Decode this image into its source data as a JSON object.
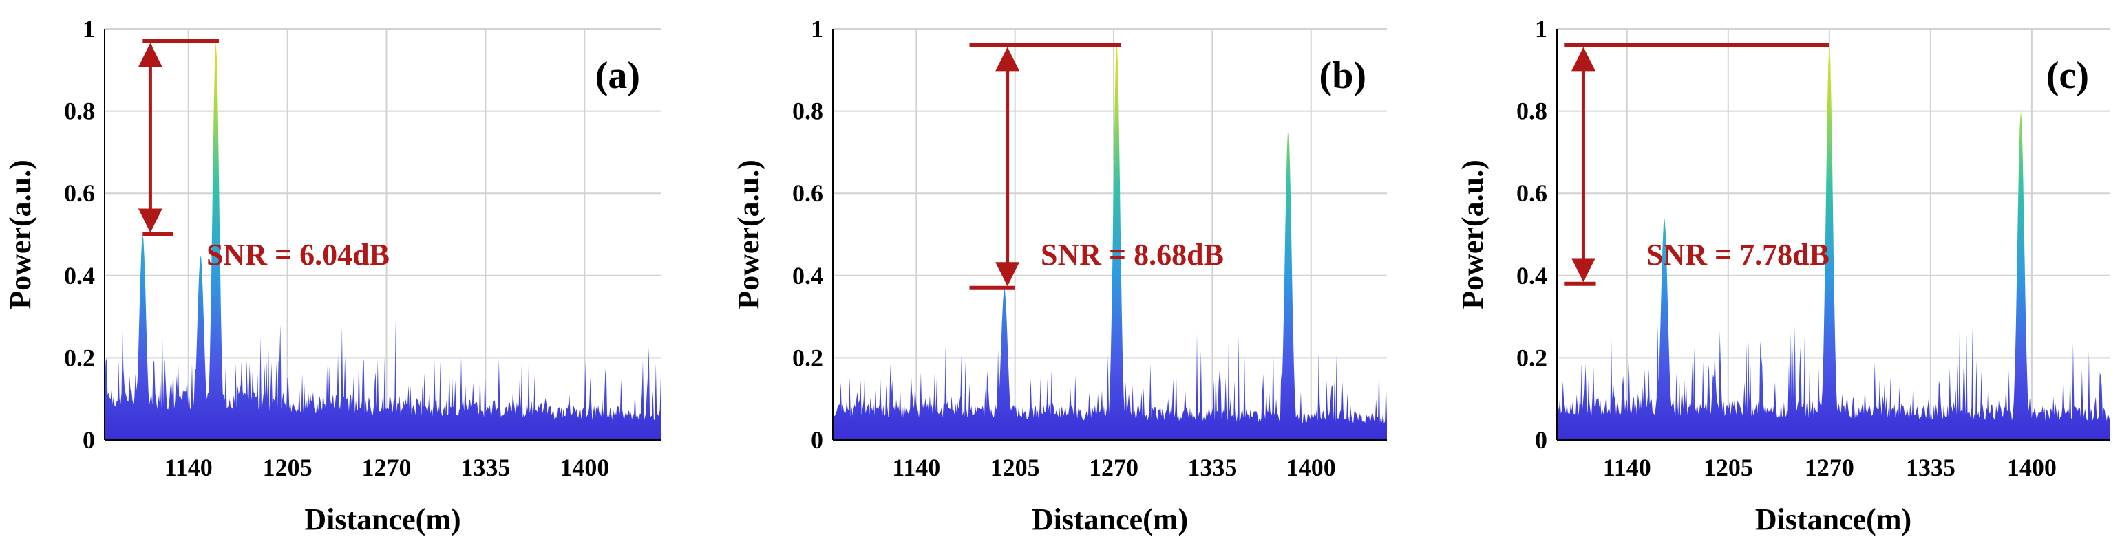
{
  "colors": {
    "annotation": "#b01818",
    "trace_low": "#3a2fd6",
    "trace_mid": "#2f9be0",
    "trace_high": "#f2e21a",
    "grid": "#d2d2d2"
  },
  "chart_data": [
    {
      "type": "area",
      "panel_label": "(a)",
      "xlabel": "Distance(m)",
      "ylabel": "Power(a.u.)",
      "xlim": [
        1085,
        1450
      ],
      "ylim": [
        0,
        1
      ],
      "xticks": [
        "1140",
        "1205",
        "1270",
        "1335",
        "1400"
      ],
      "yticks": [
        "0",
        "0.2",
        "0.4",
        "0.6",
        "0.8",
        "1"
      ],
      "grid": true,
      "floor_start": 0.14,
      "floor_end": 0.08,
      "noise_max": 0.2,
      "noise_seed": 7,
      "peaks": [
        {
          "x": 1158,
          "y": 0.97
        },
        {
          "x": 1110,
          "y": 0.5
        },
        {
          "x": 1148,
          "y": 0.45
        }
      ],
      "snr": {
        "text": "SNR = 6.04dB",
        "top": 0.97,
        "bottom": 0.5,
        "arrow_x": 1115,
        "line_x0": 1110,
        "line_x1": 1160,
        "bottom_x1": 1130
      }
    },
    {
      "type": "area",
      "panel_label": "(b)",
      "xlabel": "Distance(m)",
      "ylabel": "Power(a.u.)",
      "xlim": [
        1085,
        1450
      ],
      "ylim": [
        0,
        1
      ],
      "xticks": [
        "1140",
        "1205",
        "1270",
        "1335",
        "1400"
      ],
      "yticks": [
        "0",
        "0.2",
        "0.4",
        "0.6",
        "0.8",
        "1"
      ],
      "grid": true,
      "floor_start": 0.1,
      "floor_end": 0.07,
      "noise_max": 0.17,
      "noise_seed": 11,
      "peaks": [
        {
          "x": 1272,
          "y": 0.97
        },
        {
          "x": 1385,
          "y": 0.76
        },
        {
          "x": 1198,
          "y": 0.37
        }
      ],
      "snr": {
        "text": "SNR = 8.68dB",
        "top": 0.96,
        "bottom": 0.37,
        "arrow_x": 1200,
        "line_x0": 1175,
        "line_x1": 1275,
        "bottom_x1": 1205
      }
    },
    {
      "type": "area",
      "panel_label": "(c)",
      "xlabel": "Distance(m)",
      "ylabel": "Power(a.u.)",
      "xlim": [
        1095,
        1450
      ],
      "ylim": [
        0,
        1
      ],
      "xticks": [
        "1140",
        "1205",
        "1270",
        "1335",
        "1400"
      ],
      "yticks": [
        "0",
        "0.2",
        "0.4",
        "0.6",
        "0.8",
        "1"
      ],
      "grid": true,
      "floor_start": 0.11,
      "floor_end": 0.08,
      "noise_max": 0.19,
      "noise_seed": 23,
      "peaks": [
        {
          "x": 1270,
          "y": 0.96
        },
        {
          "x": 1393,
          "y": 0.8
        },
        {
          "x": 1164,
          "y": 0.54
        }
      ],
      "snr": {
        "text": "SNR = 7.78dB",
        "top": 0.96,
        "bottom": 0.38,
        "arrow_x": 1112,
        "line_x0": 1100,
        "line_x1": 1270,
        "bottom_x1": 1120
      }
    }
  ]
}
